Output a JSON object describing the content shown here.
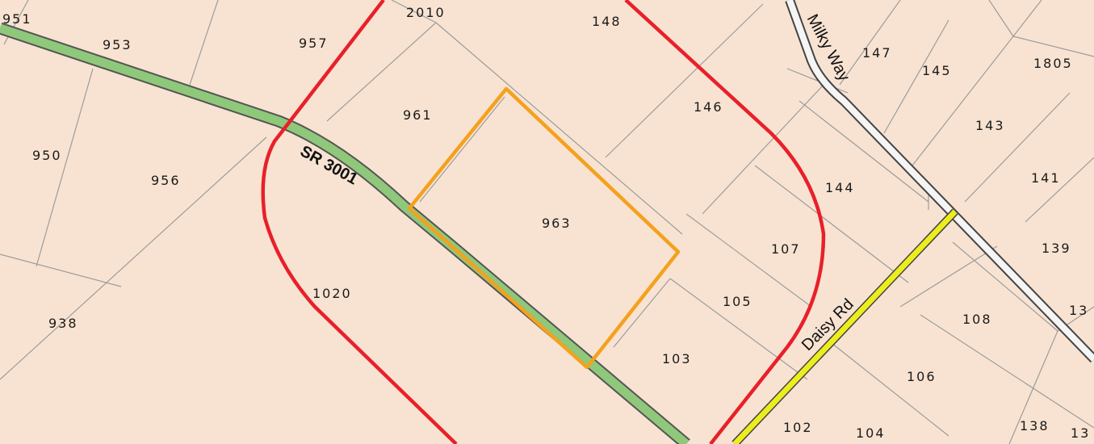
{
  "map": {
    "colors": {
      "background": "#f8e3d2",
      "parcel_line": "#9c9c9c",
      "buffer": "#e8202a",
      "subject_parcel": "#f4a11e",
      "highway": "#8fc87a",
      "local_road": "#eded1e"
    },
    "roads": {
      "sr3001": "SR 3001",
      "milky_way": "Milky Way",
      "daisy_rd": "Daisy Rd"
    },
    "parcels": {
      "p951": "951",
      "p953": "953",
      "p957": "957",
      "p2010": "2010",
      "p148": "148",
      "p147": "147",
      "p145": "145",
      "p1805": "1805",
      "p961": "961",
      "p146": "146",
      "p143": "143",
      "p950": "950",
      "p956": "956",
      "p963": "963",
      "p144": "144",
      "p141": "141",
      "p107": "107",
      "p139": "139",
      "p1020": "1020",
      "p105": "105",
      "p13a": "13",
      "p938": "938",
      "p108": "108",
      "p103": "103",
      "p106": "106",
      "p102": "102",
      "p104": "104",
      "p138": "138",
      "p13b": "13"
    }
  }
}
